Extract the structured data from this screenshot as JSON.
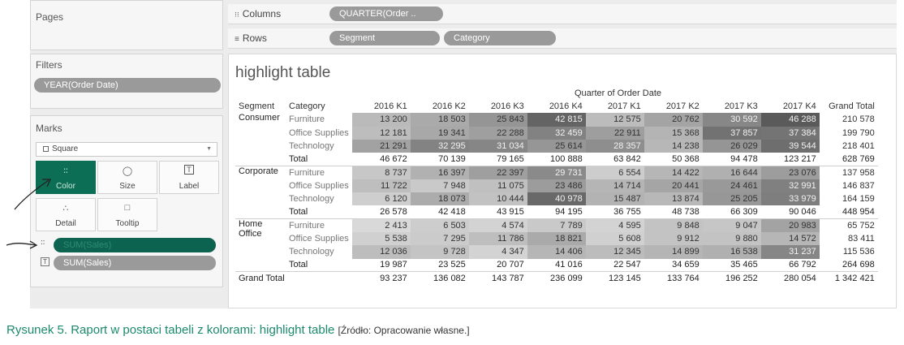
{
  "pages": {
    "title": "Pages"
  },
  "filters": {
    "title": "Filters",
    "pill": "YEAR(Order Date)"
  },
  "marks": {
    "title": "Marks",
    "type": "Square",
    "buttons": [
      {
        "label": "Color",
        "icon": "color-dots-icon"
      },
      {
        "label": "Size",
        "icon": "size-icon"
      },
      {
        "label": "Label",
        "icon": "label-icon"
      },
      {
        "label": "Detail",
        "icon": "detail-icon"
      },
      {
        "label": "Tooltip",
        "icon": "tooltip-icon"
      }
    ],
    "fields": [
      "SUM(Sales)",
      "SUM(Sales)"
    ]
  },
  "columns": {
    "label": "Columns",
    "pill": "QUARTER(Order .."
  },
  "rows": {
    "label": "Rows",
    "pills": [
      "Segment",
      "Category"
    ]
  },
  "view": {
    "title": "highlight table",
    "col_header": "Quarter of Order Date"
  },
  "table": {
    "headers": [
      "Segment",
      "Category",
      "2016 K1",
      "2016 K2",
      "2016 K3",
      "2016 K4",
      "2017 K1",
      "2017 K2",
      "2017 K3",
      "2017 K4",
      "Grand Total"
    ],
    "segments": [
      {
        "name": "Consumer",
        "rows": [
          {
            "category": "Furniture",
            "values": [
              "13 200",
              "18 503",
              "25 843",
              "42 815",
              "12 575",
              "20 762",
              "30 592",
              "46 288"
            ],
            "total": "210 578"
          },
          {
            "category": "Office Supplies",
            "values": [
              "12 181",
              "19 341",
              "22 288",
              "32 459",
              "22 911",
              "15 368",
              "37 857",
              "37 384"
            ],
            "total": "199 790"
          },
          {
            "category": "Technology",
            "values": [
              "21 291",
              "32 295",
              "31 034",
              "25 614",
              "28 357",
              "14 238",
              "26 029",
              "39 544"
            ],
            "total": "218 401"
          }
        ],
        "total_label": "Total",
        "totals": [
          "46 672",
          "70 139",
          "79 165",
          "100 888",
          "63 842",
          "50 368",
          "94 478",
          "123 217"
        ],
        "grand": "628 769"
      },
      {
        "name": "Corporate",
        "rows": [
          {
            "category": "Furniture",
            "values": [
              "8 737",
              "16 397",
              "22 397",
              "29 731",
              "6 554",
              "14 422",
              "16 644",
              "23 076"
            ],
            "total": "137 958"
          },
          {
            "category": "Office Supplies",
            "values": [
              "11 722",
              "7 948",
              "11 075",
              "23 486",
              "14 714",
              "20 441",
              "24 461",
              "32 991"
            ],
            "total": "146 837"
          },
          {
            "category": "Technology",
            "values": [
              "6 120",
              "18 073",
              "10 444",
              "40 978",
              "15 487",
              "13 874",
              "25 205",
              "33 979"
            ],
            "total": "164 159"
          }
        ],
        "total_label": "Total",
        "totals": [
          "26 578",
          "42 418",
          "43 915",
          "94 195",
          "36 755",
          "48 738",
          "66 309",
          "90 046"
        ],
        "grand": "448 954"
      },
      {
        "name": "Home Office",
        "rows": [
          {
            "category": "Furniture",
            "values": [
              "2 413",
              "6 503",
              "4 574",
              "7 789",
              "4 595",
              "9 848",
              "9 047",
              "20 983"
            ],
            "total": "65 752"
          },
          {
            "category": "Office Supplies",
            "values": [
              "5 538",
              "7 295",
              "11 786",
              "18 821",
              "5 608",
              "9 912",
              "9 880",
              "14 572"
            ],
            "total": "83 411"
          },
          {
            "category": "Technology",
            "values": [
              "12 036",
              "9 728",
              "4 347",
              "14 406",
              "12 345",
              "14 899",
              "16 538",
              "31 237"
            ],
            "total": "115 536"
          }
        ],
        "total_label": "Total",
        "totals": [
          "19 987",
          "23 525",
          "20 707",
          "41 016",
          "22 547",
          "34 659",
          "35 465",
          "66 792"
        ],
        "grand": "264 698"
      }
    ],
    "grand_total_label": "Grand Total",
    "grand_totals": [
      "93 237",
      "136 082",
      "143 787",
      "236 099",
      "123 145",
      "133 764",
      "196 252",
      "280 054"
    ],
    "grand_grand": "1 342 421"
  },
  "caption": {
    "main": "Rysunek 5. Raport w postaci tabeli z kolorami: highlight table",
    "source": "[Źródło: Opracowanie własne.]"
  },
  "colors": {
    "accent": "#0c6e55",
    "caption": "#1b8a6b",
    "cell_min": "#d9d9d9",
    "cell_max": "#5a5a5a"
  }
}
